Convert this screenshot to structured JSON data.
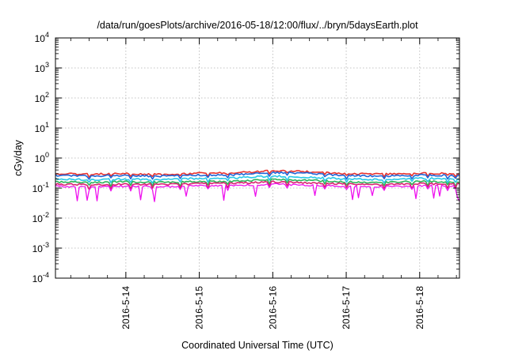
{
  "chart_data": {
    "type": "line",
    "title": "/data/run/goesPlots/archive/2016-05-18/12:00/flux/../bryn/5daysEarth.plot",
    "xlabel": "Coordinated Universal Time (UTC)",
    "ylabel": "cGy/day",
    "yscale": "log",
    "ylim": [
      0.0001,
      10000
    ],
    "xlim": [
      "2016-05-13 01:00",
      "2016-05-18 13:00"
    ],
    "grid": true,
    "y_ticks": [
      {
        "base": "10",
        "exp": "-4",
        "value": 0.0001
      },
      {
        "base": "10",
        "exp": "-3",
        "value": 0.001
      },
      {
        "base": "10",
        "exp": "-2",
        "value": 0.01
      },
      {
        "base": "10",
        "exp": "-1",
        "value": 0.1
      },
      {
        "base": "10",
        "exp": "0",
        "value": 1
      },
      {
        "base": "10",
        "exp": "1",
        "value": 10
      },
      {
        "base": "10",
        "exp": "2",
        "value": 100
      },
      {
        "base": "10",
        "exp": "3",
        "value": 1000
      },
      {
        "base": "10",
        "exp": "4",
        "value": 10000
      }
    ],
    "x_ticks": [
      {
        "label": "2016-5-14",
        "value": "2016-05-14 00:00"
      },
      {
        "label": "2016-5-15",
        "value": "2016-05-15 00:00"
      },
      {
        "label": "2016-5-16",
        "value": "2016-05-16 00:00"
      },
      {
        "label": "2016-5-17",
        "value": "2016-05-17 00:00"
      },
      {
        "label": "2016-5-18",
        "value": "2016-05-18 00:00"
      }
    ],
    "x": [
      "2016-05-13 01:00",
      "2016-05-13 12:00",
      "2016-05-14 00:00",
      "2016-05-14 12:00",
      "2016-05-15 00:00",
      "2016-05-15 12:00",
      "2016-05-16 00:00",
      "2016-05-16 12:00",
      "2016-05-17 00:00",
      "2016-05-17 12:00",
      "2016-05-18 00:00",
      "2016-05-18 13:00"
    ],
    "series": [
      {
        "color": "#e8322e",
        "values": [
          0.3,
          0.29,
          0.3,
          0.28,
          0.31,
          0.32,
          0.38,
          0.35,
          0.3,
          0.29,
          0.31,
          0.3
        ]
      },
      {
        "color": "#2166d8",
        "values": [
          0.26,
          0.25,
          0.26,
          0.25,
          0.27,
          0.28,
          0.33,
          0.31,
          0.26,
          0.25,
          0.27,
          0.26
        ]
      },
      {
        "color": "#28c8e8",
        "values": [
          0.2,
          0.19,
          0.2,
          0.19,
          0.21,
          0.22,
          0.25,
          0.23,
          0.2,
          0.19,
          0.21,
          0.2
        ]
      },
      {
        "color": "#2db35a",
        "values": [
          0.16,
          0.155,
          0.16,
          0.155,
          0.165,
          0.17,
          0.19,
          0.18,
          0.16,
          0.155,
          0.165,
          0.16
        ]
      },
      {
        "color": "#d8246e",
        "values": [
          0.135,
          0.13,
          0.135,
          0.13,
          0.14,
          0.145,
          0.16,
          0.15,
          0.135,
          0.13,
          0.14,
          0.135
        ]
      },
      {
        "color": "#ee10ee",
        "values": [
          0.115,
          0.11,
          0.115,
          0.11,
          0.12,
          0.12,
          0.135,
          0.125,
          0.115,
          0.11,
          0.12,
          0.115
        ]
      }
    ]
  }
}
